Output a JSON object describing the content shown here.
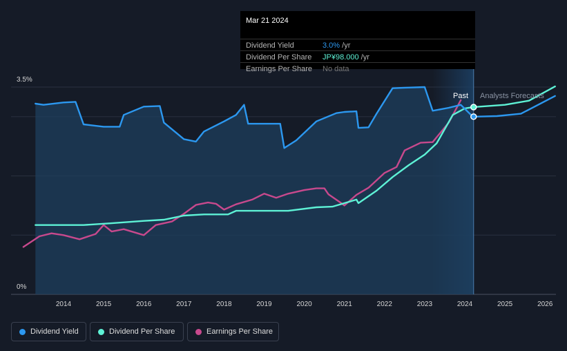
{
  "tooltip": {
    "date": "Mar 21 2024",
    "rows": [
      {
        "label": "Dividend Yield",
        "value": "3.0%",
        "unit": " /yr"
      },
      {
        "label": "Dividend Per Share",
        "value": "JP¥98.000",
        "unit": " /yr"
      },
      {
        "label": "Earnings Per Share",
        "value": "No data",
        "unit": ""
      }
    ]
  },
  "labels": {
    "past": "Past",
    "forecast": "Analysts Forecasts"
  },
  "legend": [
    {
      "label": "Dividend Yield",
      "color": "#2c98f0"
    },
    {
      "label": "Dividend Per Share",
      "color": "#5ef2d6"
    },
    {
      "label": "Earnings Per Share",
      "color": "#c8498d"
    }
  ],
  "chart_data": {
    "type": "line",
    "title": "",
    "xlabel": "",
    "ylabel": "",
    "x_ticks": [
      "2014",
      "2015",
      "2016",
      "2017",
      "2018",
      "2019",
      "2020",
      "2021",
      "2022",
      "2023",
      "2024",
      "2025",
      "2026"
    ],
    "y_ticks": [
      "0%",
      "3.5%"
    ],
    "xlim": [
      2013.0,
      2026.25
    ],
    "ylim": [
      0,
      3.5
    ],
    "past_until": 2024.22,
    "series": [
      {
        "name": "Dividend Yield",
        "color": "#2c98f0",
        "unit": "%",
        "points": [
          [
            2013.3,
            3.22
          ],
          [
            2013.5,
            3.2
          ],
          [
            2014.0,
            3.24
          ],
          [
            2014.3,
            3.25
          ],
          [
            2014.5,
            2.87
          ],
          [
            2015.0,
            2.83
          ],
          [
            2015.4,
            2.83
          ],
          [
            2015.5,
            3.03
          ],
          [
            2016.0,
            3.17
          ],
          [
            2016.4,
            3.18
          ],
          [
            2016.5,
            2.9
          ],
          [
            2017.0,
            2.62
          ],
          [
            2017.3,
            2.58
          ],
          [
            2017.5,
            2.75
          ],
          [
            2018.0,
            2.92
          ],
          [
            2018.3,
            3.03
          ],
          [
            2018.5,
            3.2
          ],
          [
            2018.6,
            2.88
          ],
          [
            2019.4,
            2.88
          ],
          [
            2019.5,
            2.47
          ],
          [
            2019.8,
            2.6
          ],
          [
            2020.3,
            2.92
          ],
          [
            2020.8,
            3.06
          ],
          [
            2021.0,
            3.08
          ],
          [
            2021.3,
            3.09
          ],
          [
            2021.35,
            2.81
          ],
          [
            2021.6,
            2.82
          ],
          [
            2021.8,
            3.05
          ],
          [
            2022.2,
            3.48
          ],
          [
            2022.5,
            3.49
          ],
          [
            2023.0,
            3.5
          ],
          [
            2023.2,
            3.1
          ],
          [
            2023.6,
            3.15
          ],
          [
            2023.9,
            3.2
          ],
          [
            2024.2,
            3.0
          ],
          [
            2024.8,
            3.01
          ],
          [
            2025.4,
            3.05
          ],
          [
            2026.25,
            3.35
          ]
        ]
      },
      {
        "name": "Dividend Per Share",
        "color": "#5ef2d6",
        "unit": "JPY",
        "points": [
          [
            2013.3,
            1.17
          ],
          [
            2014.5,
            1.17
          ],
          [
            2015.2,
            1.2
          ],
          [
            2016.0,
            1.24
          ],
          [
            2016.5,
            1.26
          ],
          [
            2017.0,
            1.33
          ],
          [
            2017.5,
            1.35
          ],
          [
            2018.1,
            1.35
          ],
          [
            2018.3,
            1.41
          ],
          [
            2019.0,
            1.41
          ],
          [
            2019.6,
            1.41
          ],
          [
            2020.3,
            1.47
          ],
          [
            2020.7,
            1.48
          ],
          [
            2021.0,
            1.54
          ],
          [
            2021.3,
            1.6
          ],
          [
            2021.35,
            1.54
          ],
          [
            2021.8,
            1.75
          ],
          [
            2022.2,
            1.98
          ],
          [
            2022.6,
            2.18
          ],
          [
            2023.0,
            2.36
          ],
          [
            2023.3,
            2.55
          ],
          [
            2023.7,
            3.03
          ],
          [
            2024.0,
            3.14
          ],
          [
            2024.2,
            3.16
          ],
          [
            2025.0,
            3.2
          ],
          [
            2025.6,
            3.27
          ],
          [
            2026.25,
            3.51
          ]
        ]
      },
      {
        "name": "Earnings Per Share",
        "color": "#c8498d",
        "unit": "JPY",
        "points": [
          [
            2013.0,
            0.8
          ],
          [
            2013.4,
            0.98
          ],
          [
            2013.7,
            1.03
          ],
          [
            2014.0,
            1.0
          ],
          [
            2014.4,
            0.93
          ],
          [
            2014.8,
            1.02
          ],
          [
            2015.0,
            1.17
          ],
          [
            2015.2,
            1.06
          ],
          [
            2015.5,
            1.1
          ],
          [
            2016.0,
            1.0
          ],
          [
            2016.3,
            1.17
          ],
          [
            2016.7,
            1.23
          ],
          [
            2017.0,
            1.36
          ],
          [
            2017.3,
            1.51
          ],
          [
            2017.6,
            1.55
          ],
          [
            2017.8,
            1.53
          ],
          [
            2018.0,
            1.43
          ],
          [
            2018.3,
            1.52
          ],
          [
            2018.7,
            1.6
          ],
          [
            2019.0,
            1.7
          ],
          [
            2019.3,
            1.63
          ],
          [
            2019.6,
            1.7
          ],
          [
            2020.0,
            1.76
          ],
          [
            2020.3,
            1.79
          ],
          [
            2020.5,
            1.79
          ],
          [
            2020.6,
            1.69
          ],
          [
            2020.9,
            1.55
          ],
          [
            2021.0,
            1.5
          ],
          [
            2021.3,
            1.68
          ],
          [
            2021.6,
            1.8
          ],
          [
            2022.0,
            2.05
          ],
          [
            2022.3,
            2.15
          ],
          [
            2022.5,
            2.43
          ],
          [
            2022.9,
            2.56
          ],
          [
            2023.2,
            2.57
          ],
          [
            2023.6,
            2.9
          ],
          [
            2023.9,
            3.28
          ]
        ]
      }
    ]
  }
}
